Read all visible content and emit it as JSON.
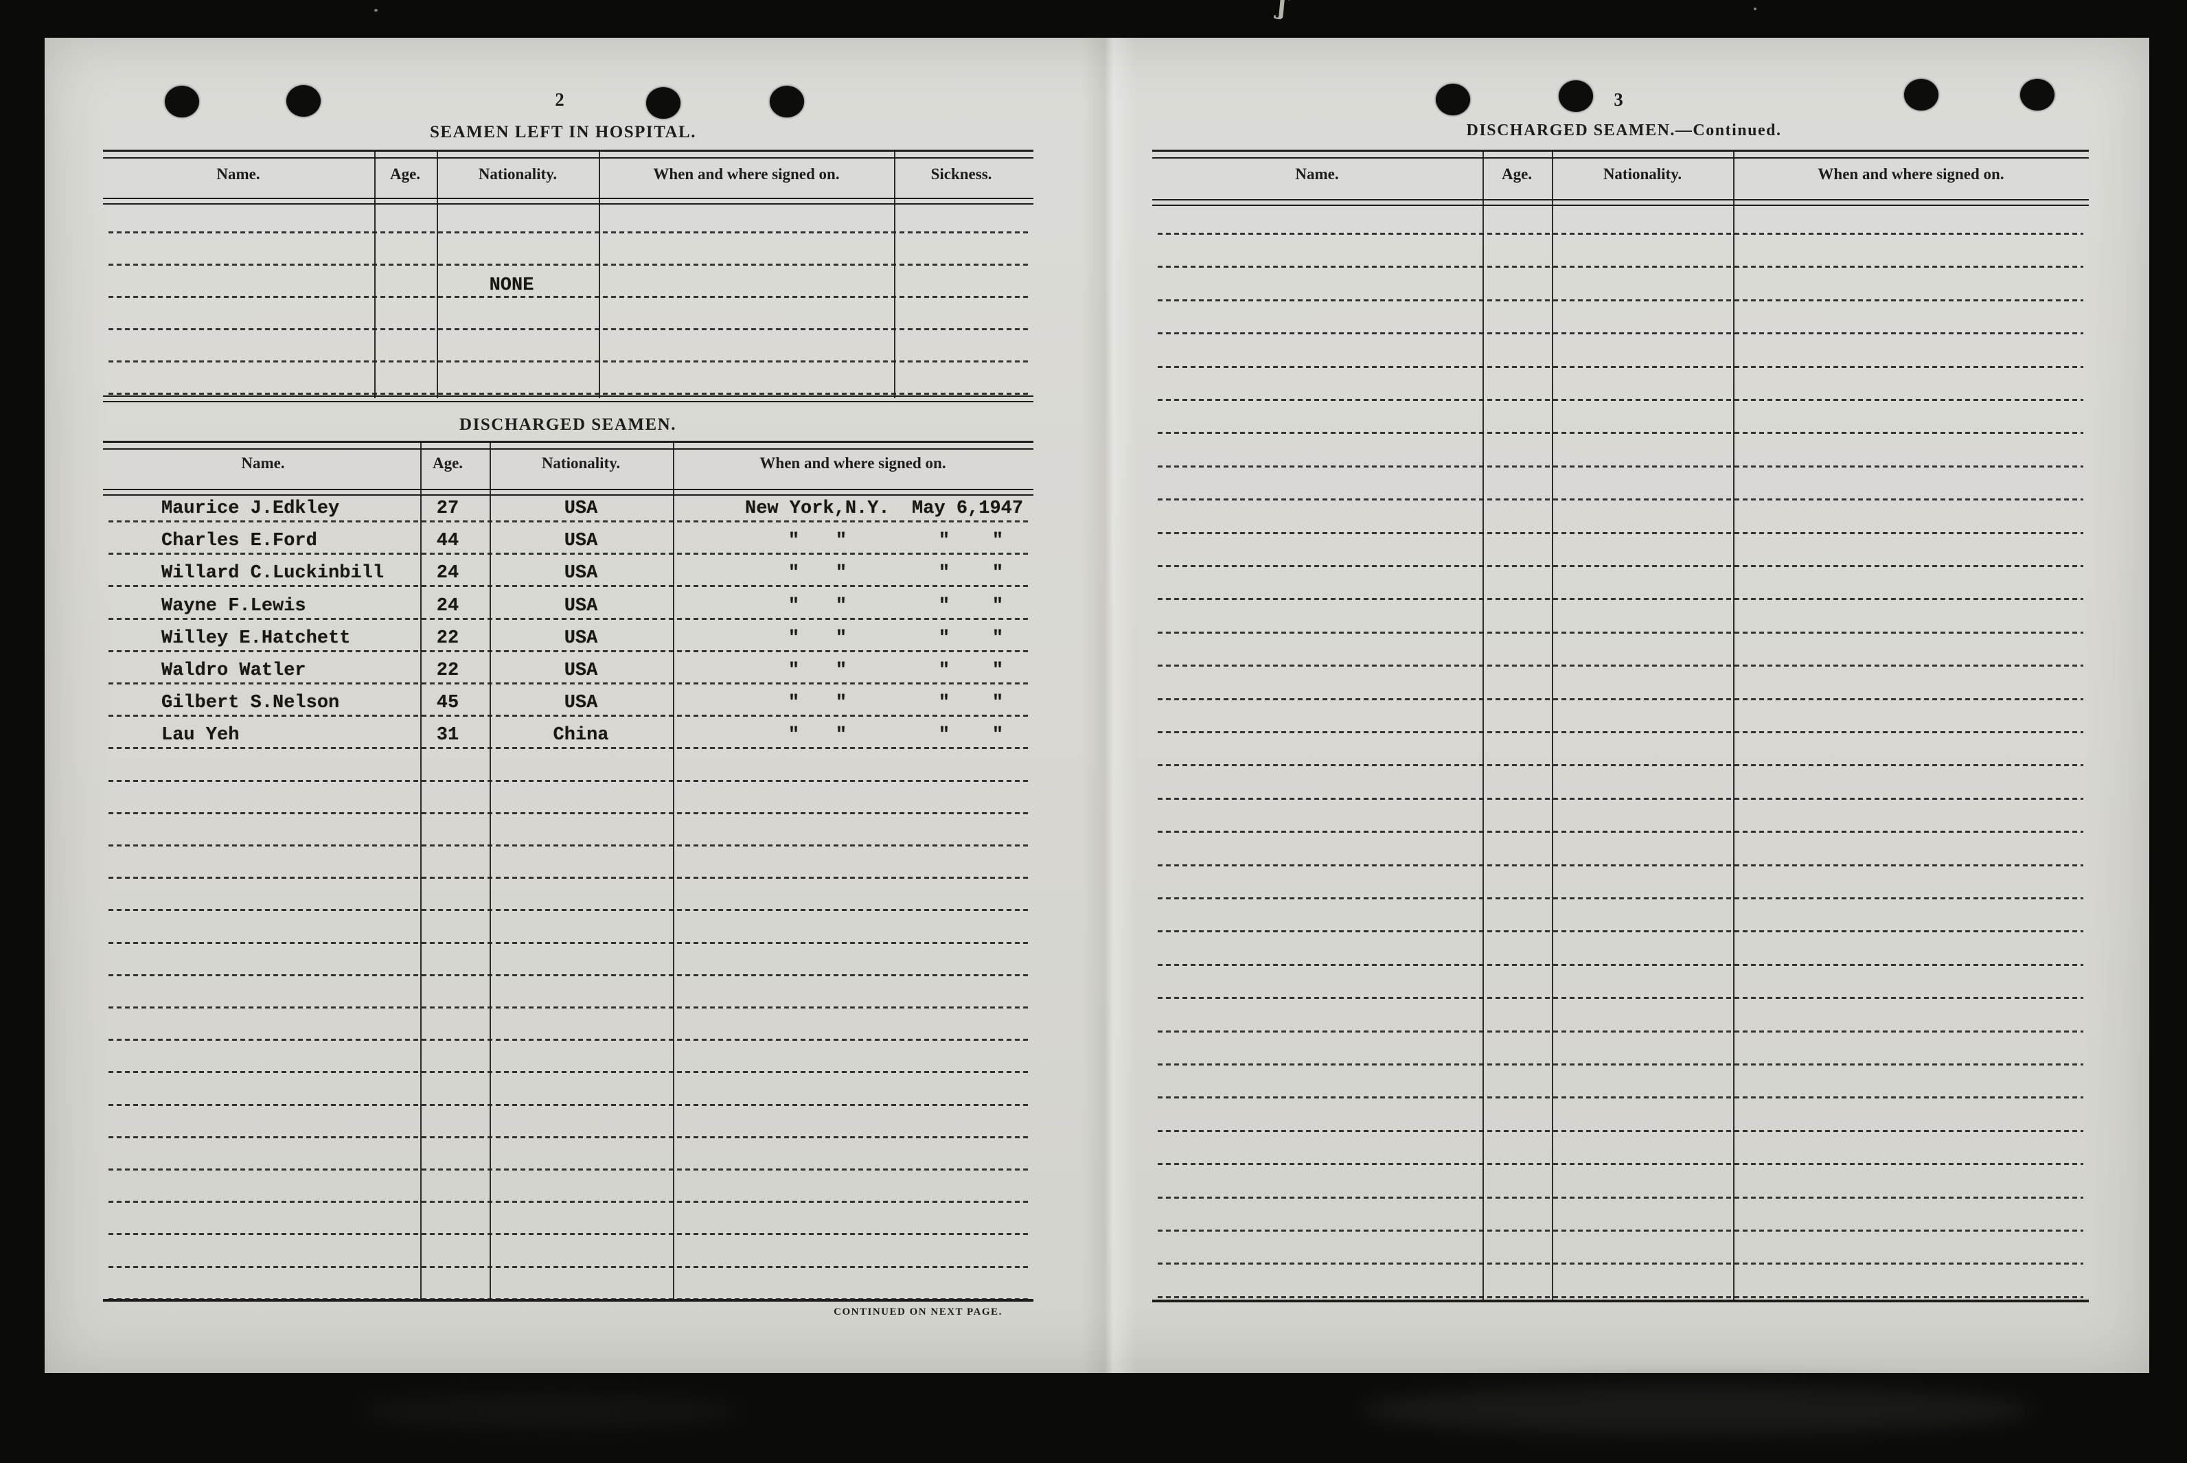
{
  "colors": {
    "paper": "#d8d7d2",
    "ink": "#1e1d1b",
    "typed_ink": "#191814",
    "background": "#0b0b0a"
  },
  "left_page": {
    "page_number": "2",
    "hospital_section": {
      "title": "SEAMEN LEFT IN HOSPITAL.",
      "column_headers": [
        "Name.",
        "Age.",
        "Nationality.",
        "When and where signed on.",
        "Sickness."
      ],
      "entry": "NONE"
    },
    "discharged_section": {
      "title": "DISCHARGED SEAMEN.",
      "column_headers": [
        "Name.",
        "Age.",
        "Nationality.",
        "When and where signed on."
      ],
      "ditto_mark": "\"",
      "crew": [
        {
          "name": "Maurice J.Edkley",
          "age": "27",
          "nationality": "USA",
          "signed_on": "New York,N.Y.  May 6,1947",
          "ditto": false
        },
        {
          "name": "Charles E.Ford",
          "age": "44",
          "nationality": "USA",
          "signed_on": "",
          "ditto": true
        },
        {
          "name": "Willard C.Luckinbill",
          "age": "24",
          "nationality": "USA",
          "signed_on": "",
          "ditto": true
        },
        {
          "name": "Wayne F.Lewis",
          "age": "24",
          "nationality": "USA",
          "signed_on": "",
          "ditto": true
        },
        {
          "name": "Willey E.Hatchett",
          "age": "22",
          "nationality": "USA",
          "signed_on": "",
          "ditto": true
        },
        {
          "name": "Waldro Watler",
          "age": "22",
          "nationality": "USA",
          "signed_on": "",
          "ditto": true
        },
        {
          "name": "Gilbert S.Nelson",
          "age": "45",
          "nationality": "USA",
          "signed_on": "",
          "ditto": true
        },
        {
          "name": "Lau Yeh",
          "age": "31",
          "nationality": "China",
          "signed_on": "",
          "ditto": true
        }
      ]
    },
    "footer": "CONTINUED ON NEXT PAGE."
  },
  "right_page": {
    "page_number": "3",
    "title": "DISCHARGED SEAMEN.—Continued.",
    "column_headers": [
      "Name.",
      "Age.",
      "Nationality.",
      "When and where signed on."
    ]
  }
}
